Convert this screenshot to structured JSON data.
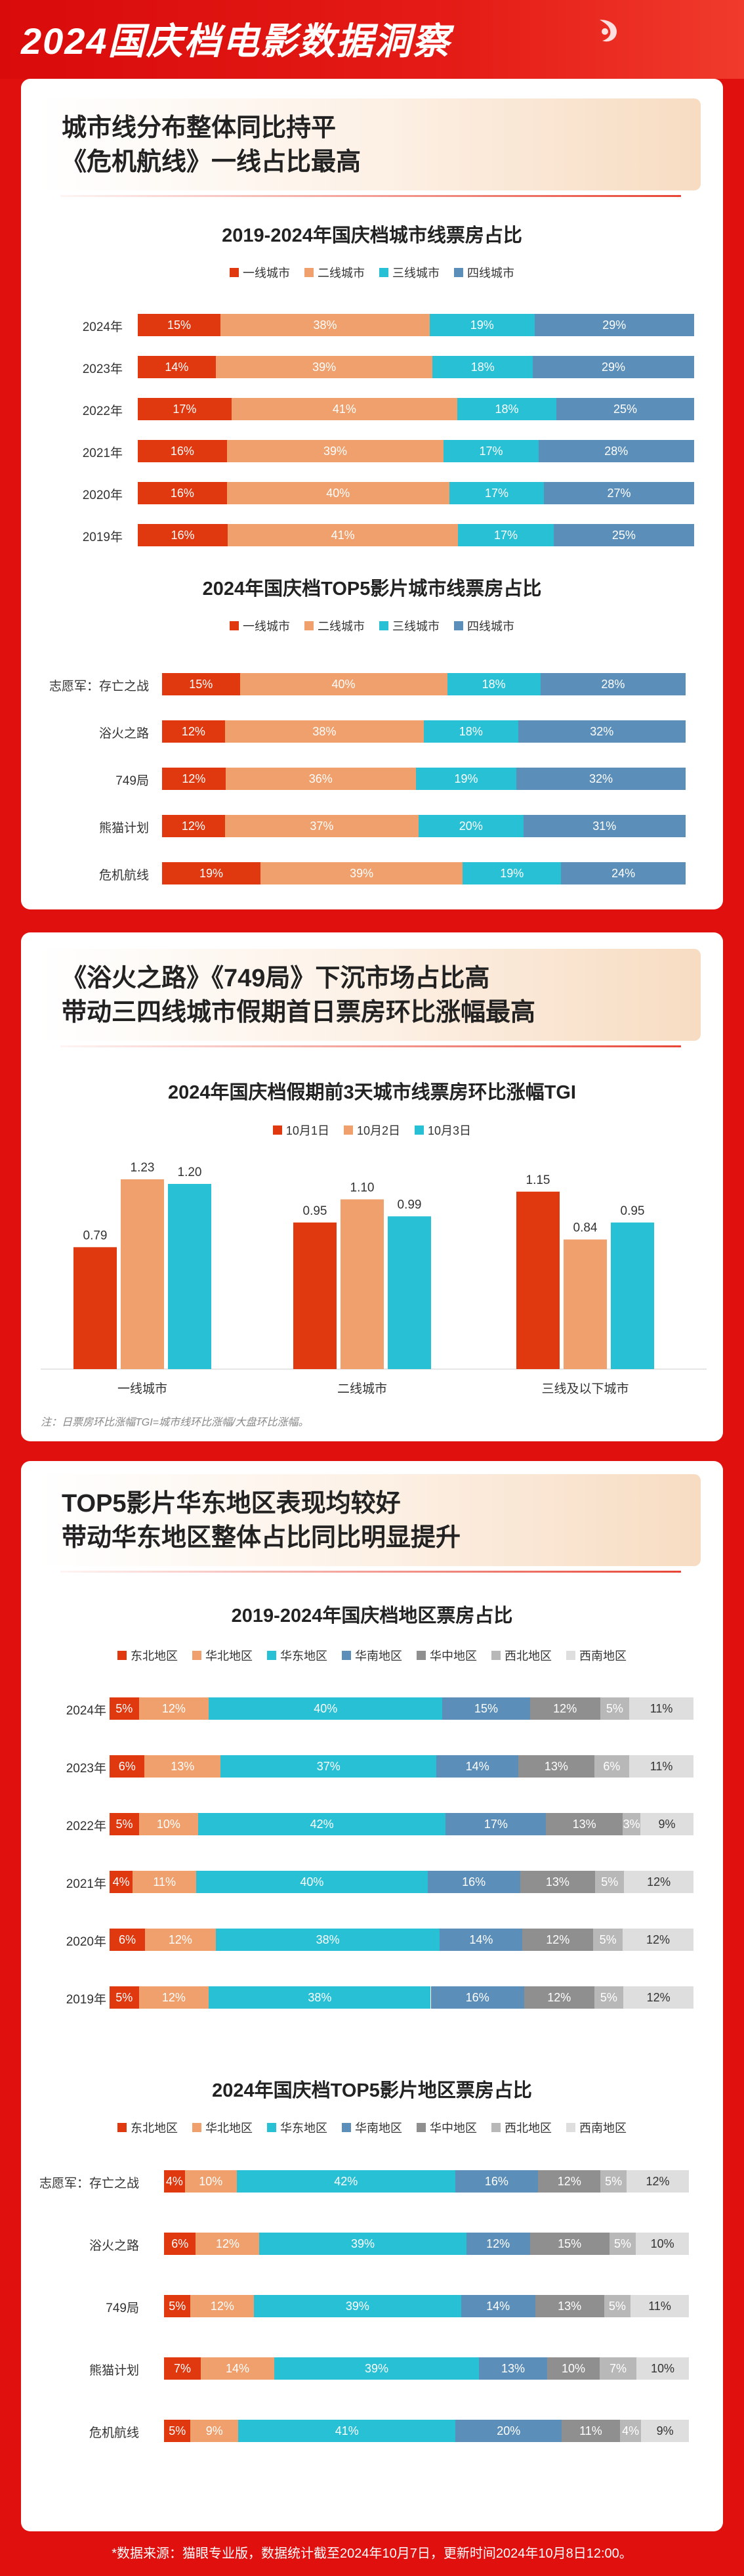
{
  "header": {
    "title": "2024国庆档电影数据洞察"
  },
  "colors": {
    "tier": [
      "#e0390f",
      "#efa06c",
      "#27c0d5",
      "#5b8fb9"
    ],
    "region": [
      "#e0390f",
      "#efa06c",
      "#27c0d5",
      "#5b8fb9",
      "#8f8f8f",
      "#b8b8b8",
      "#dedede"
    ],
    "days": [
      "#e0390f",
      "#efa06c",
      "#27c0d5"
    ]
  },
  "section1": {
    "line1": "城市线分布整体同比持平",
    "line2": "《危机航线》一线占比最高"
  },
  "section2": {
    "line1": "《浴火之路》《749局》下沉市场占比高",
    "line2": "带动三四线城市假期首日票房环比涨幅最高"
  },
  "section3": {
    "line1": "TOP5影片华东地区表现均较好",
    "line2": "带动华东地区整体占比同比明显提升"
  },
  "chart_data": [
    {
      "type": "bar",
      "stacked": true,
      "orientation": "horizontal",
      "title": "2019-2024年国庆档城市线票房占比",
      "categories": [
        "2024年",
        "2023年",
        "2022年",
        "2021年",
        "2020年",
        "2019年"
      ],
      "series": [
        {
          "name": "一线城市",
          "values": [
            15,
            14,
            17,
            16,
            16,
            16
          ]
        },
        {
          "name": "二线城市",
          "values": [
            38,
            39,
            41,
            39,
            40,
            41
          ]
        },
        {
          "name": "三线城市",
          "values": [
            19,
            18,
            18,
            17,
            17,
            17
          ]
        },
        {
          "name": "四线城市",
          "values": [
            29,
            29,
            25,
            28,
            27,
            25
          ]
        }
      ]
    },
    {
      "type": "bar",
      "stacked": true,
      "orientation": "horizontal",
      "title": "2024年国庆档TOP5影片城市线票房占比",
      "categories": [
        "志愿军：存亡之战",
        "浴火之路",
        "749局",
        "熊猫计划",
        "危机航线"
      ],
      "series": [
        {
          "name": "一线城市",
          "values": [
            15,
            12,
            12,
            12,
            19
          ]
        },
        {
          "name": "二线城市",
          "values": [
            40,
            38,
            36,
            37,
            39
          ]
        },
        {
          "name": "三线城市",
          "values": [
            18,
            18,
            19,
            20,
            19
          ]
        },
        {
          "name": "四线城市",
          "values": [
            28,
            32,
            32,
            31,
            24
          ]
        }
      ]
    },
    {
      "type": "bar",
      "title": "2024年国庆档假期前3天城市线票房环比涨幅TGI",
      "categories": [
        "一线城市",
        "二线城市",
        "三线及以下城市"
      ],
      "series": [
        {
          "name": "10月1日",
          "values": [
            0.79,
            0.95,
            1.15
          ],
          "labels": [
            "0.79",
            "0.95",
            "1.15"
          ]
        },
        {
          "name": "10月2日",
          "values": [
            1.23,
            1.1,
            0.84
          ],
          "labels": [
            "1.23",
            "1.10",
            "0.84"
          ]
        },
        {
          "name": "10月3日",
          "values": [
            1.2,
            0.99,
            0.95
          ],
          "labels": [
            "1.20",
            "0.99",
            "0.95"
          ]
        }
      ],
      "note": "注：日票房环比涨幅TGI=城市线环比涨幅/大盘环比涨幅。"
    },
    {
      "type": "bar",
      "stacked": true,
      "orientation": "horizontal",
      "title": "2019-2024年国庆档地区票房占比",
      "categories": [
        "2024年",
        "2023年",
        "2022年",
        "2021年",
        "2020年",
        "2019年"
      ],
      "series": [
        {
          "name": "东北地区",
          "values": [
            5,
            6,
            5,
            4,
            6,
            5
          ]
        },
        {
          "name": "华北地区",
          "values": [
            12,
            13,
            10,
            11,
            12,
            12
          ]
        },
        {
          "name": "华东地区",
          "values": [
            40,
            37,
            42,
            40,
            38,
            38
          ]
        },
        {
          "name": "华南地区",
          "values": [
            15,
            14,
            17,
            16,
            14,
            16
          ]
        },
        {
          "name": "华中地区",
          "values": [
            12,
            13,
            13,
            13,
            12,
            12
          ]
        },
        {
          "name": "西北地区",
          "values": [
            5,
            6,
            3,
            5,
            5,
            5
          ]
        },
        {
          "name": "西南地区",
          "values": [
            11,
            11,
            9,
            12,
            12,
            12
          ]
        }
      ]
    },
    {
      "type": "bar",
      "stacked": true,
      "orientation": "horizontal",
      "title": "2024年国庆档TOP5影片地区票房占比",
      "categories": [
        "志愿军：存亡之战",
        "浴火之路",
        "749局",
        "熊猫计划",
        "危机航线"
      ],
      "series": [
        {
          "name": "东北地区",
          "values": [
            4,
            6,
            5,
            7,
            5
          ]
        },
        {
          "name": "华北地区",
          "values": [
            10,
            12,
            12,
            14,
            9
          ]
        },
        {
          "name": "华东地区",
          "values": [
            42,
            39,
            39,
            39,
            41
          ]
        },
        {
          "name": "华南地区",
          "values": [
            16,
            12,
            14,
            13,
            20
          ]
        },
        {
          "name": "华中地区",
          "values": [
            12,
            15,
            13,
            10,
            11
          ]
        },
        {
          "name": "西北地区",
          "values": [
            5,
            5,
            5,
            7,
            4
          ]
        },
        {
          "name": "西南地区",
          "values": [
            12,
            10,
            11,
            10,
            9
          ]
        }
      ]
    }
  ],
  "footer": {
    "text": "*数据来源：猫眼专业版，数据统计截至2024年10月7日，更新时间2024年10月8日12:00。"
  }
}
